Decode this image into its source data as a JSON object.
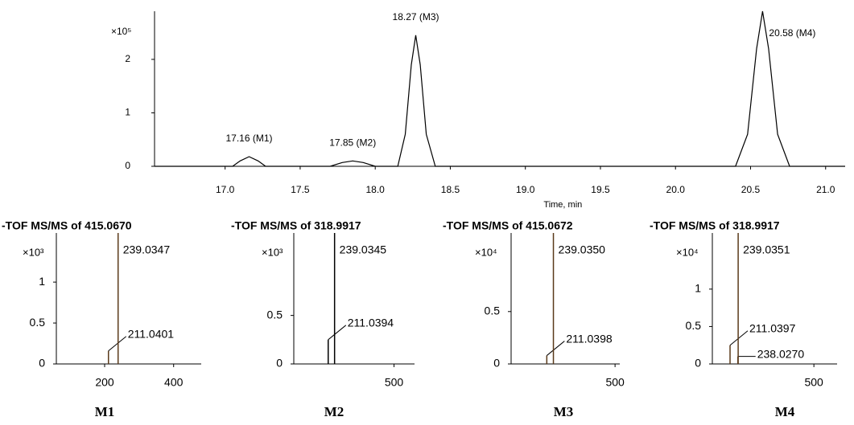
{
  "chart_data": [
    {
      "type": "line",
      "x_label": "Time, min",
      "y_multiplier": "×10⁵",
      "color": "#000000",
      "xlim": [
        16.53,
        21.13
      ],
      "ylim": [
        0,
        2.9
      ],
      "xticks": [
        {
          "value": 17,
          "label": "17.0"
        },
        17.5,
        {
          "value": 18,
          "label": "18.0"
        },
        18.5,
        {
          "value": 19,
          "label": "19.0"
        },
        19.5,
        {
          "value": 20,
          "label": "20.0"
        },
        20.5,
        {
          "value": 21,
          "label": "21.0"
        }
      ],
      "yticks": [
        0,
        1,
        2
      ],
      "x": [
        16.53,
        17.05,
        17.1,
        17.16,
        17.22,
        17.27,
        17.7,
        17.78,
        17.85,
        17.92,
        18.0,
        18.15,
        18.2,
        18.24,
        18.27,
        18.3,
        18.34,
        18.4,
        20.4,
        20.48,
        20.54,
        20.58,
        20.62,
        20.68,
        20.76,
        21.13
      ],
      "values": [
        0,
        0,
        0.1,
        0.18,
        0.1,
        0,
        0,
        0.07,
        0.1,
        0.07,
        0,
        0,
        0.6,
        1.9,
        2.45,
        1.9,
        0.6,
        0,
        0,
        0.6,
        2.2,
        2.9,
        2.2,
        0.6,
        0,
        0
      ],
      "annotations": [
        {
          "text": "17.16 (M1)",
          "x": 17.16,
          "y": 0.18
        },
        {
          "text": "17.85 (M2)",
          "x": 17.85,
          "y": 0.1
        },
        {
          "text": "18.27 (M3)",
          "x": 18.27,
          "y": 2.45
        },
        {
          "text": "20.58 (M4)",
          "x": 20.58,
          "y": 2.9
        }
      ]
    },
    {
      "type": "stem",
      "title": "-TOF MS/MS of 415.0670",
      "y_multiplier": "×10³",
      "caption": "M1",
      "color": "#5a3a1a",
      "xlim": [
        60,
        480
      ],
      "ylim": [
        0,
        1.6
      ],
      "xticks": [
        200,
        400
      ],
      "yticks": [
        0,
        0.5,
        1
      ],
      "x": [
        211.0401,
        239.0347
      ],
      "values": [
        0.16,
        1.6
      ],
      "peak_labels": [
        "211.0401",
        "239.0347"
      ]
    },
    {
      "type": "stem",
      "title": "-TOF MS/MS of 318.9917",
      "y_multiplier": "×10³",
      "caption": "M2",
      "color": "#000000",
      "xlim": [
        60,
        590
      ],
      "ylim": [
        0,
        1.35
      ],
      "xticks": [
        500
      ],
      "yticks": [
        0,
        0.5
      ],
      "x": [
        211.0394,
        239.0345
      ],
      "values": [
        0.25,
        1.35
      ],
      "peak_labels": [
        "211.0394",
        "239.0345"
      ]
    },
    {
      "type": "stem",
      "title": "-TOF MS/MS of 415.0672",
      "y_multiplier": "×10⁴",
      "caption": "M3",
      "color": "#5a3a1a",
      "xlim": [
        60,
        520
      ],
      "ylim": [
        0,
        1.25
      ],
      "xticks": [
        500
      ],
      "yticks": [
        0,
        0.5
      ],
      "x": [
        211.0398,
        239.035
      ],
      "values": [
        0.08,
        1.25
      ],
      "peak_labels": [
        "211.0398",
        "239.0350"
      ]
    },
    {
      "type": "stem",
      "title": "-TOF MS/MS of 318.9917",
      "y_multiplier": "×10⁴",
      "caption": "M4",
      "color": "#5a3a1a",
      "xlim": [
        150,
        580
      ],
      "ylim": [
        0,
        1.75
      ],
      "xticks": [
        500
      ],
      "yticks": [
        0,
        0.5,
        1
      ],
      "x": [
        211.0397,
        238.027,
        239.0351
      ],
      "values": [
        0.25,
        0.1,
        1.75
      ],
      "peak_labels": [
        "211.0397",
        "238.0270",
        "239.0351"
      ]
    }
  ]
}
